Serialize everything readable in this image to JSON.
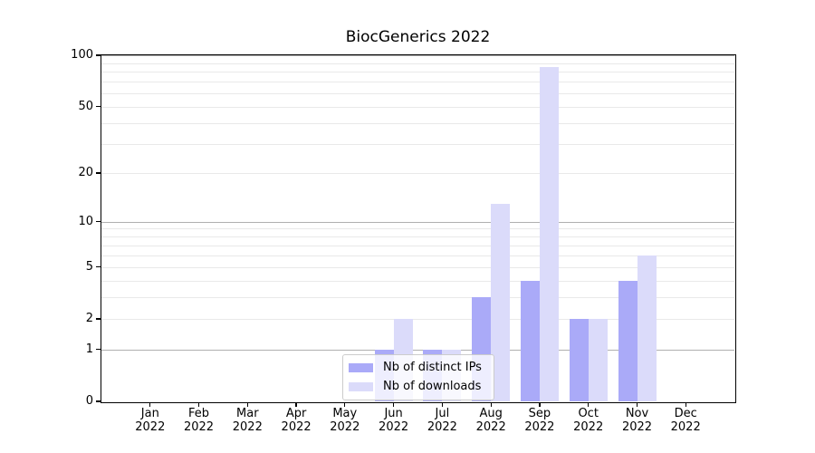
{
  "chart_data": {
    "type": "bar",
    "title": "BiocGenerics 2022",
    "categories": [
      "Jan",
      "Feb",
      "Mar",
      "Apr",
      "May",
      "Jun",
      "Jul",
      "Aug",
      "Sep",
      "Oct",
      "Nov",
      "Dec"
    ],
    "x_year_label": "2022",
    "series": [
      {
        "name": "Nb of distinct IPs",
        "color": "#aaaaf8",
        "values": [
          0,
          0,
          0,
          0,
          0,
          1,
          1,
          3,
          4,
          2,
          4,
          0
        ]
      },
      {
        "name": "Nb of downloads",
        "color": "#dbdbfa",
        "values": [
          0,
          0,
          0,
          0,
          0,
          2,
          1,
          13,
          85,
          2,
          6,
          0
        ]
      }
    ],
    "y_scale": "log1p",
    "ylim": [
      0,
      100
    ],
    "y_ticks": [
      0,
      1,
      2,
      5,
      10,
      20,
      50,
      100
    ],
    "y_major_gridlines": [
      1,
      10,
      100
    ],
    "y_minor_gridlines": [
      2,
      3,
      4,
      5,
      6,
      7,
      8,
      9,
      20,
      30,
      40,
      50,
      60,
      70,
      80,
      90
    ],
    "grid": "horizontal",
    "legend_position": "inside-bottom-center",
    "colors": {
      "axis": "#000000",
      "grid_major": "#b0b0b0",
      "grid_minor": "#e9e9e9",
      "background": "#ffffff"
    }
  }
}
